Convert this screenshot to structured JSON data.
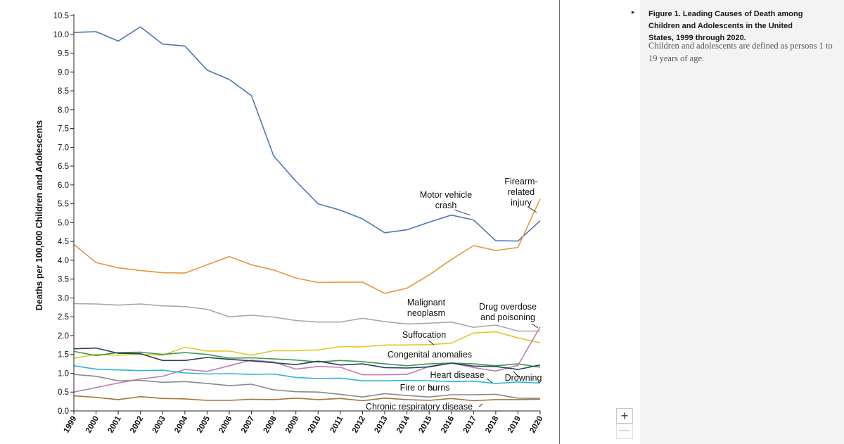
{
  "caption": {
    "toggle_icon": "triangle-right-icon",
    "title": "Figure 1. Leading Causes of Death among Children and Adolescents in the United States, 1999 through 2020.",
    "body": "Children and adolescents are defined as persons 1 to 19 years of age."
  },
  "zoom": {
    "in_label": "+",
    "out_label": "—"
  },
  "chart_data": {
    "type": "line",
    "title": "",
    "xlabel": "",
    "ylabel": "Deaths per 100,000 Children and Adolescents",
    "ylim": [
      0,
      10.5
    ],
    "yticks": [
      "0.0",
      "0.5",
      "1.0",
      "1.5",
      "2.0",
      "2.5",
      "3.0",
      "3.5",
      "4.0",
      "4.5",
      "5.0",
      "5.5",
      "6.0",
      "6.5",
      "7.0",
      "7.5",
      "8.0",
      "8.5",
      "9.0",
      "9.5",
      "10.0",
      "10.5"
    ],
    "x": [
      "1999",
      "2000",
      "2001",
      "2002",
      "2003",
      "2004",
      "2005",
      "2006",
      "2007",
      "2008",
      "2009",
      "2010",
      "2011",
      "2012",
      "2013",
      "2014",
      "2015",
      "2016",
      "2017",
      "2018",
      "2019",
      "2020"
    ],
    "series": [
      {
        "name": "Motor vehicle crash",
        "label": [
          "Motor vehicle",
          "crash"
        ],
        "color": "#4a78b8",
        "values": [
          10.05,
          10.07,
          9.82,
          10.2,
          9.74,
          9.69,
          9.05,
          8.8,
          8.37,
          6.77,
          6.1,
          5.5,
          5.33,
          5.1,
          4.73,
          4.81,
          5.01,
          5.2,
          5.07,
          4.52,
          4.51,
          5.05
        ]
      },
      {
        "name": "Firearm-related injury",
        "label": [
          "Firearm-",
          "related",
          "injury"
        ],
        "color": "#e8963a",
        "values": [
          4.42,
          3.94,
          3.8,
          3.73,
          3.67,
          3.66,
          3.88,
          4.1,
          3.88,
          3.74,
          3.53,
          3.41,
          3.42,
          3.42,
          3.12,
          3.26,
          3.61,
          4.02,
          4.39,
          4.26,
          4.34,
          5.63
        ]
      },
      {
        "name": "Malignant neoplasm",
        "label": [
          "Malignant",
          "neoplasm"
        ],
        "color": "#a8a8a8",
        "values": [
          2.85,
          2.84,
          2.81,
          2.84,
          2.79,
          2.77,
          2.7,
          2.5,
          2.54,
          2.49,
          2.4,
          2.36,
          2.36,
          2.46,
          2.37,
          2.31,
          2.33,
          2.36,
          2.22,
          2.28,
          2.12,
          2.12
        ]
      },
      {
        "name": "Suffocation",
        "label": [
          "Suffocation"
        ],
        "color": "#e6c42a",
        "values": [
          1.4,
          1.5,
          1.48,
          1.5,
          1.48,
          1.69,
          1.59,
          1.59,
          1.48,
          1.6,
          1.6,
          1.62,
          1.71,
          1.7,
          1.75,
          1.75,
          1.76,
          1.8,
          2.07,
          2.1,
          1.94,
          1.81
        ]
      },
      {
        "name": "Congenital anomalies",
        "label": [
          "Congenital anomalies"
        ],
        "color": "#3a9a48",
        "values": [
          1.58,
          1.47,
          1.55,
          1.56,
          1.5,
          1.55,
          1.5,
          1.4,
          1.41,
          1.38,
          1.35,
          1.3,
          1.34,
          1.31,
          1.25,
          1.2,
          1.25,
          1.27,
          1.25,
          1.2,
          1.25,
          1.16
        ]
      },
      {
        "name": "Drug overdose and poisoning",
        "label": [
          "Drug overdose",
          "and poisoning"
        ],
        "color": "#c07ab8",
        "values": [
          0.5,
          0.62,
          0.74,
          0.85,
          0.92,
          1.1,
          1.05,
          1.2,
          1.35,
          1.3,
          1.11,
          1.18,
          1.16,
          0.96,
          0.96,
          0.97,
          1.18,
          1.27,
          1.15,
          1.06,
          1.21,
          2.23
        ]
      },
      {
        "name": "Drowning",
        "label": [
          "Drowning"
        ],
        "color": "#2b3e5e",
        "values": [
          1.65,
          1.67,
          1.53,
          1.52,
          1.34,
          1.34,
          1.42,
          1.37,
          1.33,
          1.28,
          1.23,
          1.32,
          1.22,
          1.25,
          1.15,
          1.14,
          1.17,
          1.27,
          1.19,
          1.18,
          1.1,
          1.22
        ]
      },
      {
        "name": "Heart disease",
        "label": [
          "Heart disease"
        ],
        "color": "#2bb5d8",
        "values": [
          1.2,
          1.11,
          1.09,
          1.07,
          1.08,
          1.01,
          0.98,
          0.99,
          0.97,
          0.98,
          0.89,
          0.86,
          0.87,
          0.8,
          0.8,
          0.81,
          0.8,
          0.78,
          0.79,
          0.73,
          0.77,
          0.74
        ]
      },
      {
        "name": "Fire or burns",
        "label": [
          "Fire or burns"
        ],
        "color": "#8a8a8a",
        "values": [
          0.97,
          0.92,
          0.8,
          0.81,
          0.76,
          0.78,
          0.73,
          0.67,
          0.71,
          0.56,
          0.51,
          0.5,
          0.44,
          0.37,
          0.46,
          0.41,
          0.37,
          0.43,
          0.43,
          0.44,
          0.34,
          0.33
        ]
      },
      {
        "name": "Chronic respiratory disease",
        "label": [
          "Chronic respiratory disease"
        ],
        "color": "#a6753a",
        "values": [
          0.4,
          0.36,
          0.3,
          0.38,
          0.33,
          0.32,
          0.28,
          0.28,
          0.31,
          0.3,
          0.34,
          0.3,
          0.33,
          0.27,
          0.34,
          0.3,
          0.28,
          0.33,
          0.27,
          0.3,
          0.3,
          0.31
        ]
      }
    ]
  }
}
